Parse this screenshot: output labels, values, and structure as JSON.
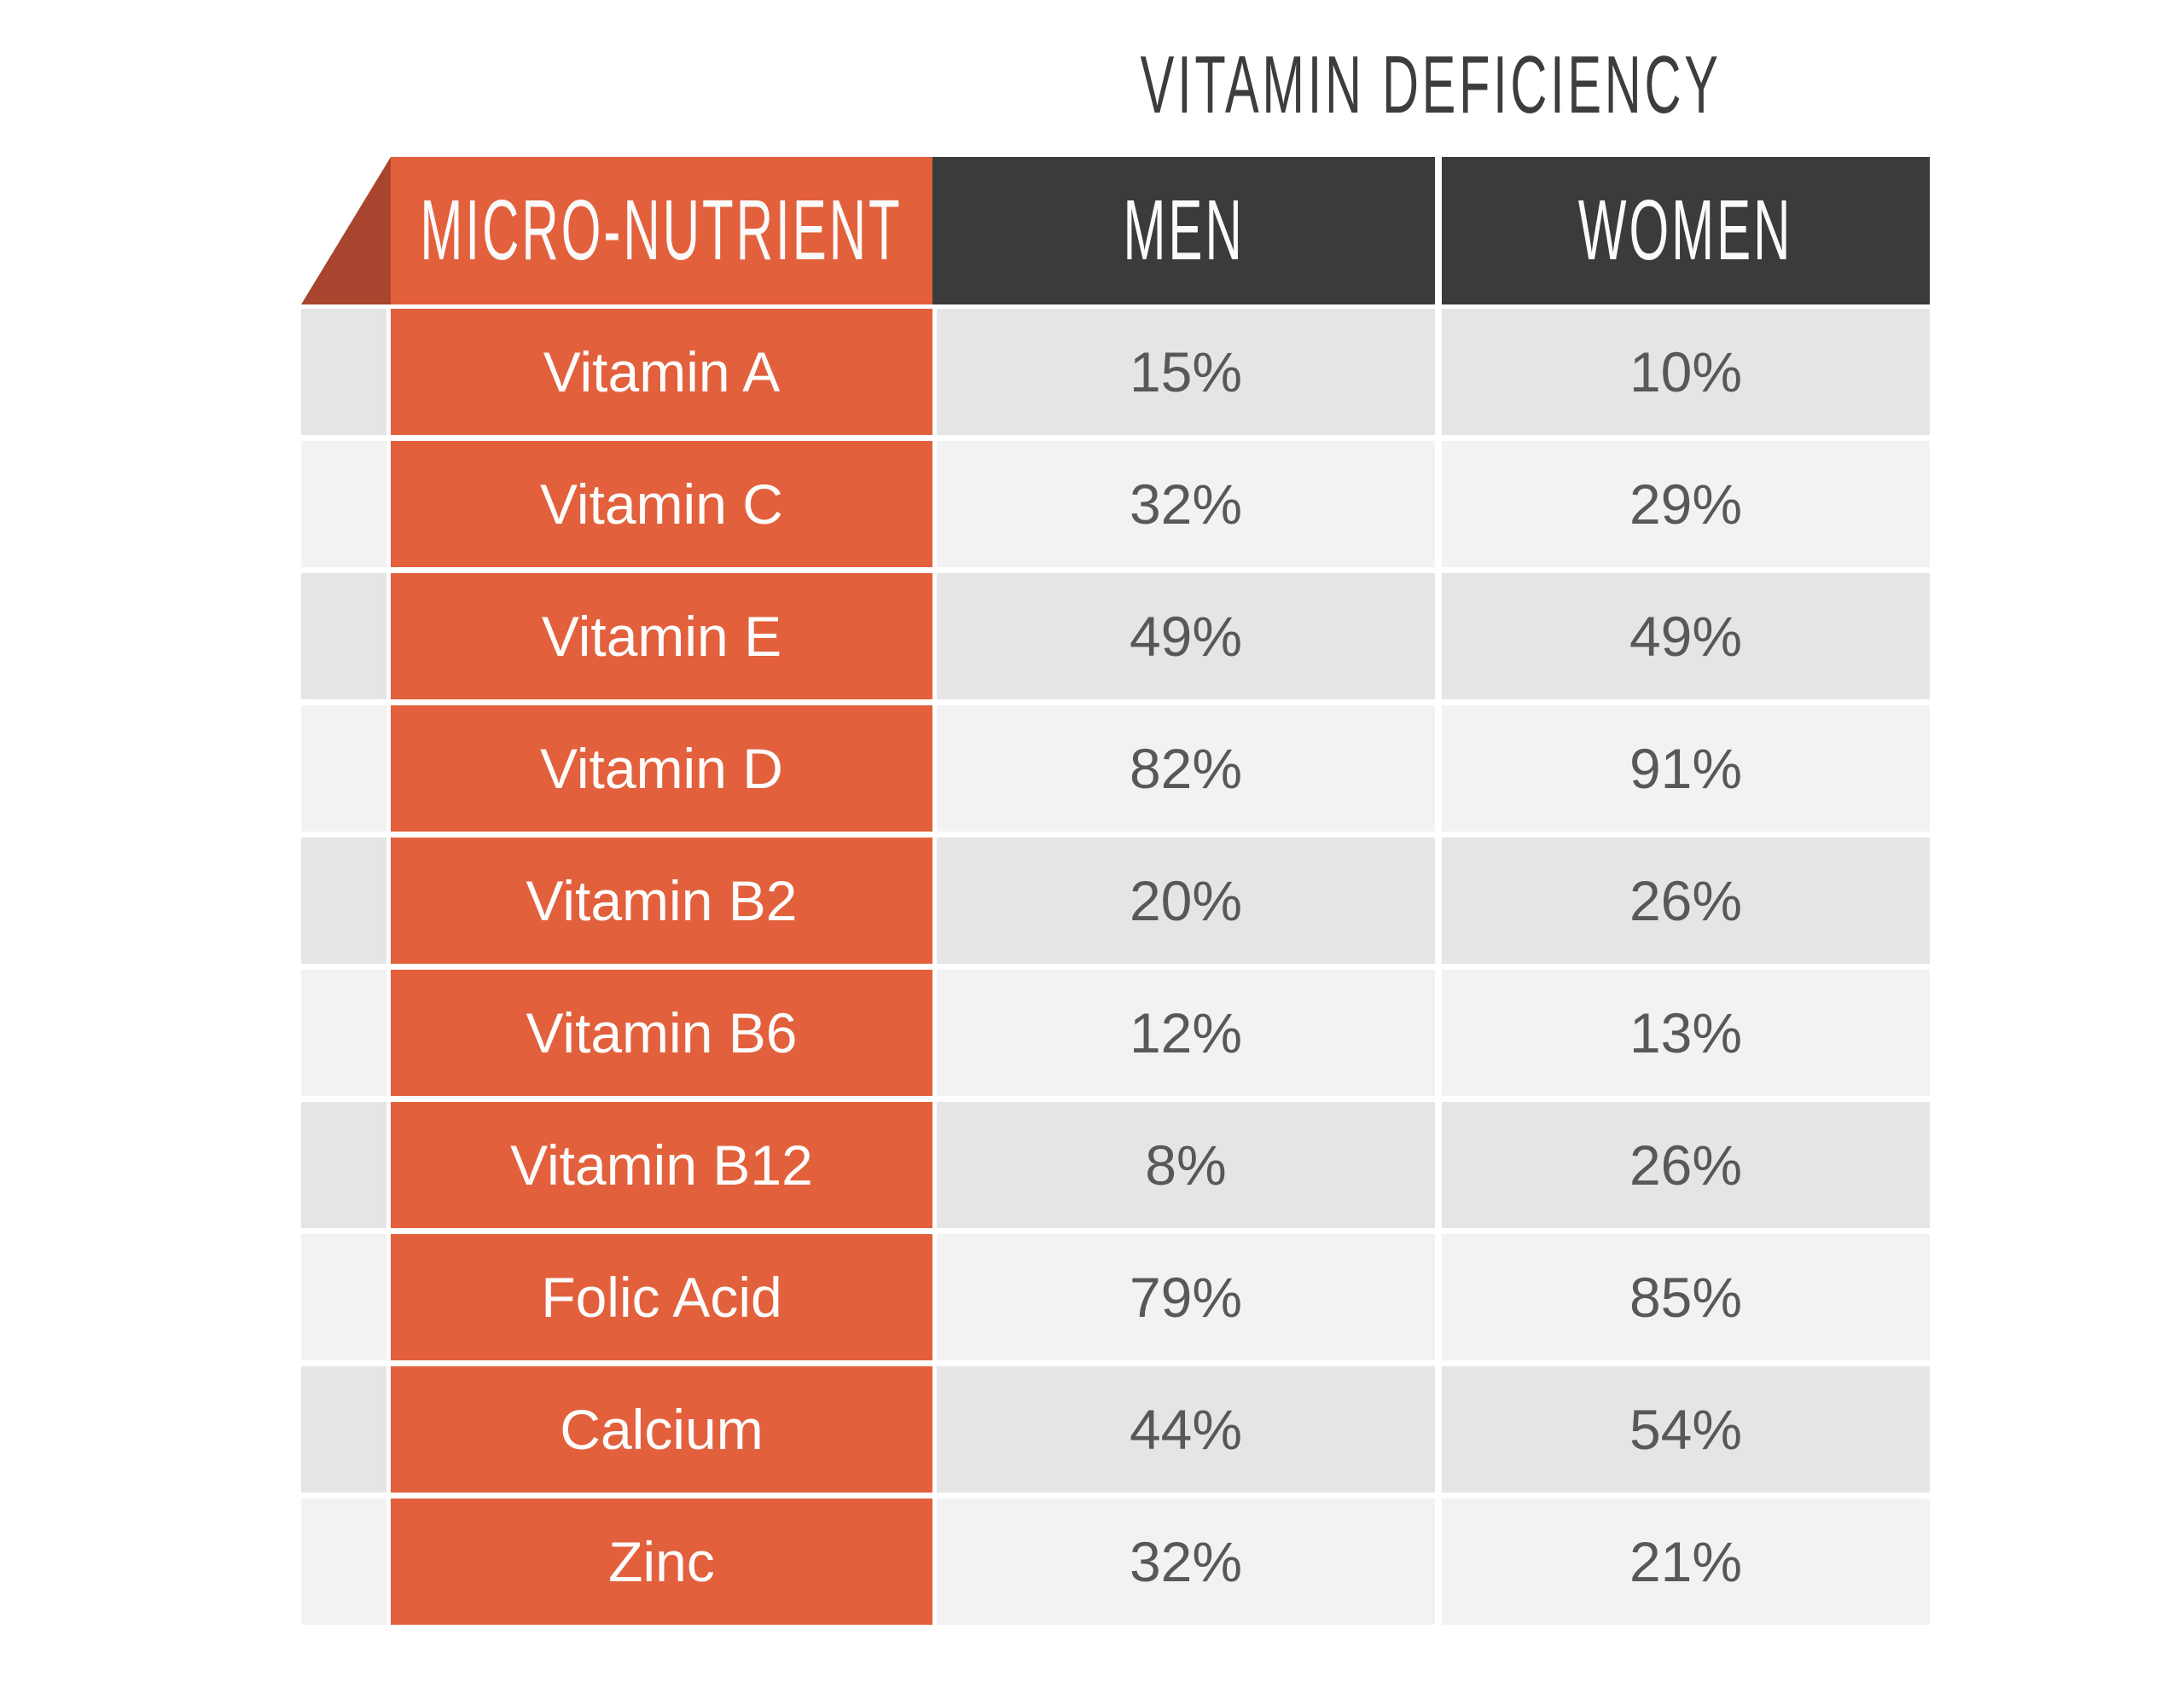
{
  "title": "VITAMIN DEFICIENCY",
  "colors": {
    "accent_orange": "#E2603C",
    "fold_dark_red": "#A9452F",
    "header_dark": "#3B3B3B",
    "row_stripe_dark": "#E5E5E5",
    "row_stripe_light": "#F2F2F2",
    "title_text": "#3D3D3D",
    "value_text": "#57585A",
    "header_text": "#FAFAFA"
  },
  "table": {
    "headers": {
      "nutrient": "MICRO-NUTRIENT",
      "men": "MEN",
      "women": "WOMEN"
    },
    "rows": [
      {
        "name": "Vitamin A",
        "men": "15%",
        "women": "10%"
      },
      {
        "name": "Vitamin C",
        "men": "32%",
        "women": "29%"
      },
      {
        "name": "Vitamin E",
        "men": "49%",
        "women": "49%"
      },
      {
        "name": "Vitamin D",
        "men": "82%",
        "women": "91%"
      },
      {
        "name": "Vitamin B2",
        "men": "20%",
        "women": "26%"
      },
      {
        "name": "Vitamin B6",
        "men": "12%",
        "women": "13%"
      },
      {
        "name": "Vitamin B12",
        "men": "8%",
        "women": "26%"
      },
      {
        "name": "Folic Acid",
        "men": "79%",
        "women": "85%"
      },
      {
        "name": "Calcium",
        "men": "44%",
        "women": "54%"
      },
      {
        "name": "Zinc",
        "men": "32%",
        "women": "21%"
      }
    ]
  },
  "chart_data": {
    "type": "table",
    "title": "VITAMIN DEFICIENCY",
    "columns": [
      "MICRO-NUTRIENT",
      "MEN",
      "WOMEN"
    ],
    "categories": [
      "Vitamin A",
      "Vitamin C",
      "Vitamin E",
      "Vitamin D",
      "Vitamin B2",
      "Vitamin B6",
      "Vitamin B12",
      "Folic Acid",
      "Calcium",
      "Zinc"
    ],
    "series": [
      {
        "name": "MEN",
        "values": [
          15,
          32,
          49,
          82,
          20,
          12,
          8,
          79,
          44,
          32
        ]
      },
      {
        "name": "WOMEN",
        "values": [
          10,
          29,
          49,
          91,
          26,
          13,
          26,
          85,
          54,
          21
        ]
      }
    ],
    "value_format": "percent"
  }
}
